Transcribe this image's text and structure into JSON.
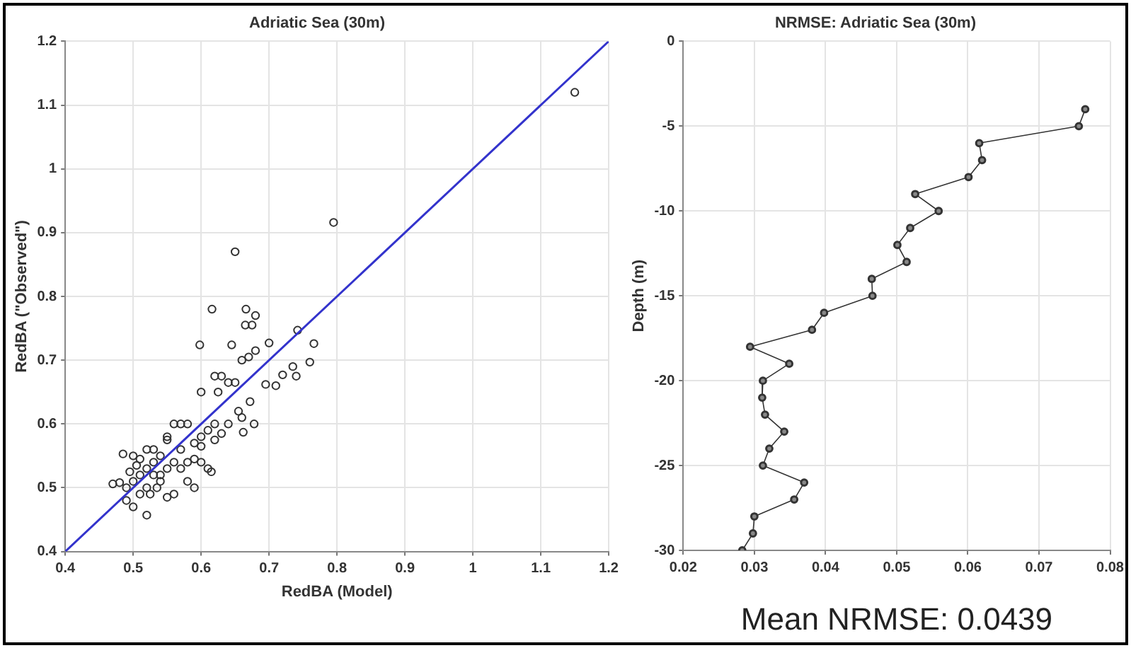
{
  "chart_data": [
    {
      "type": "scatter",
      "title": "Adriatic Sea (30m)",
      "xlabel": "RedBA (Model)",
      "ylabel": "RedBA (\"Observed\")",
      "xlim": [
        0.4,
        1.2
      ],
      "ylim": [
        0.4,
        1.2
      ],
      "xticks": [
        0.4,
        0.5,
        0.6,
        0.7,
        0.8,
        0.9,
        1,
        1.1,
        1.2
      ],
      "yticks": [
        0.4,
        0.5,
        0.6,
        0.7,
        0.8,
        0.9,
        1,
        1.1,
        1.2
      ],
      "grid": true,
      "legend": false,
      "marker": "circle",
      "series": [
        {
          "color": "#333333",
          "x": [
            1.15,
            0.795,
            0.65,
            0.616,
            0.666,
            0.68,
            0.665,
            0.675,
            0.598,
            0.645,
            0.7,
            0.766,
            0.742,
            0.76,
            0.735,
            0.72,
            0.74,
            0.71,
            0.695,
            0.66,
            0.67,
            0.68,
            0.62,
            0.63,
            0.64,
            0.65,
            0.625,
            0.6,
            0.672,
            0.655,
            0.66,
            0.678,
            0.662,
            0.64,
            0.62,
            0.61,
            0.6,
            0.58,
            0.57,
            0.56,
            0.59,
            0.62,
            0.55,
            0.54,
            0.52,
            0.53,
            0.5,
            0.485,
            0.47,
            0.48,
            0.49,
            0.49,
            0.5,
            0.51,
            0.52,
            0.53,
            0.5,
            0.51,
            0.52,
            0.54,
            0.55,
            0.56,
            0.57,
            0.58,
            0.59,
            0.6,
            0.61,
            0.615,
            0.59,
            0.56,
            0.55,
            0.52,
            0.54,
            0.53,
            0.51,
            0.58,
            0.57,
            0.6,
            0.63,
            0.55,
            0.505,
            0.495,
            0.525,
            0.535
          ],
          "values": [
            1.12,
            0.916,
            0.87,
            0.78,
            0.78,
            0.77,
            0.755,
            0.755,
            0.724,
            0.724,
            0.727,
            0.726,
            0.747,
            0.697,
            0.69,
            0.677,
            0.675,
            0.66,
            0.662,
            0.7,
            0.705,
            0.715,
            0.675,
            0.675,
            0.665,
            0.665,
            0.65,
            0.65,
            0.635,
            0.62,
            0.61,
            0.6,
            0.587,
            0.6,
            0.6,
            0.59,
            0.58,
            0.6,
            0.6,
            0.6,
            0.57,
            0.575,
            0.58,
            0.55,
            0.56,
            0.56,
            0.55,
            0.553,
            0.506,
            0.508,
            0.5,
            0.48,
            0.47,
            0.52,
            0.53,
            0.52,
            0.51,
            0.49,
            0.5,
            0.52,
            0.53,
            0.54,
            0.53,
            0.54,
            0.545,
            0.54,
            0.53,
            0.525,
            0.5,
            0.49,
            0.485,
            0.457,
            0.51,
            0.54,
            0.545,
            0.51,
            0.56,
            0.565,
            0.585,
            0.575,
            0.535,
            0.525,
            0.49,
            0.5
          ]
        },
        {
          "type": "line",
          "color": "#3333cc",
          "marker": "none",
          "x": [
            0.4,
            1.2
          ],
          "values": [
            0.4,
            1.2
          ]
        }
      ]
    },
    {
      "type": "line",
      "title": "NRMSE: Adriatic Sea (30m)",
      "ylabel": "Depth (m)",
      "xlim": [
        0.02,
        0.08
      ],
      "ylim": [
        -30,
        0
      ],
      "xticks": [
        0.02,
        0.03,
        0.04,
        0.05,
        0.06,
        0.07,
        0.08
      ],
      "yticks": [
        -30,
        -25,
        -20,
        -15,
        -10,
        -5,
        0
      ],
      "grid": true,
      "legend": false,
      "marker": "circle",
      "annotations": [
        "Mean NRMSE: 0.0439"
      ],
      "series": [
        {
          "color": "#333333",
          "x": [
            0.0765,
            0.0756,
            0.0616,
            0.062,
            0.0601,
            0.0526,
            0.0559,
            0.0519,
            0.0501,
            0.0514,
            0.0465,
            0.0466,
            0.0398,
            0.0381,
            0.0294,
            0.0349,
            0.0312,
            0.0311,
            0.0315,
            0.0342,
            0.0321,
            0.0312,
            0.037,
            0.0356,
            0.03,
            0.0298,
            0.0283
          ],
          "values": [
            -4,
            -5,
            -6,
            -7,
            -8,
            -9,
            -10,
            -11,
            -12,
            -13,
            -14,
            -15,
            -16,
            -17,
            -18,
            -19,
            -20,
            -21,
            -22,
            -23,
            -24,
            -25,
            -26,
            -27,
            -28,
            -29,
            -30
          ]
        }
      ]
    }
  ]
}
